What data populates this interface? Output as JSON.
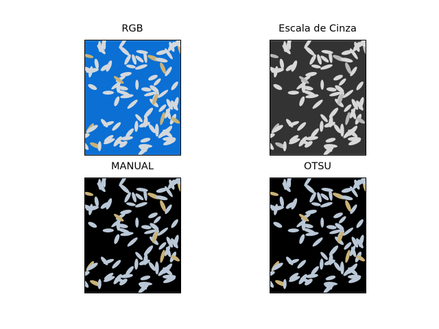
{
  "figure": {
    "panels": [
      {
        "title": "RGB",
        "bg": "#0b6fd4",
        "grain": "#d4d8dc",
        "grain_alt": "#c9b276",
        "image": "rice-grains-rgb"
      },
      {
        "title": "Escala de Cinza",
        "bg": "#333333",
        "grain": "#d8d8d8",
        "grain_alt": "#b8b8b8",
        "image": "rice-grains-grayscale"
      },
      {
        "title": "MANUAL",
        "bg": "#000000",
        "grain": "#b9c7d6",
        "grain_alt": "#c9b276",
        "image": "rice-grains-manual-threshold"
      },
      {
        "title": "OTSU",
        "bg": "#000000",
        "grain": "#b9c7d6",
        "grain_alt": "#c9b276",
        "image": "rice-grains-otsu-threshold"
      }
    ]
  }
}
